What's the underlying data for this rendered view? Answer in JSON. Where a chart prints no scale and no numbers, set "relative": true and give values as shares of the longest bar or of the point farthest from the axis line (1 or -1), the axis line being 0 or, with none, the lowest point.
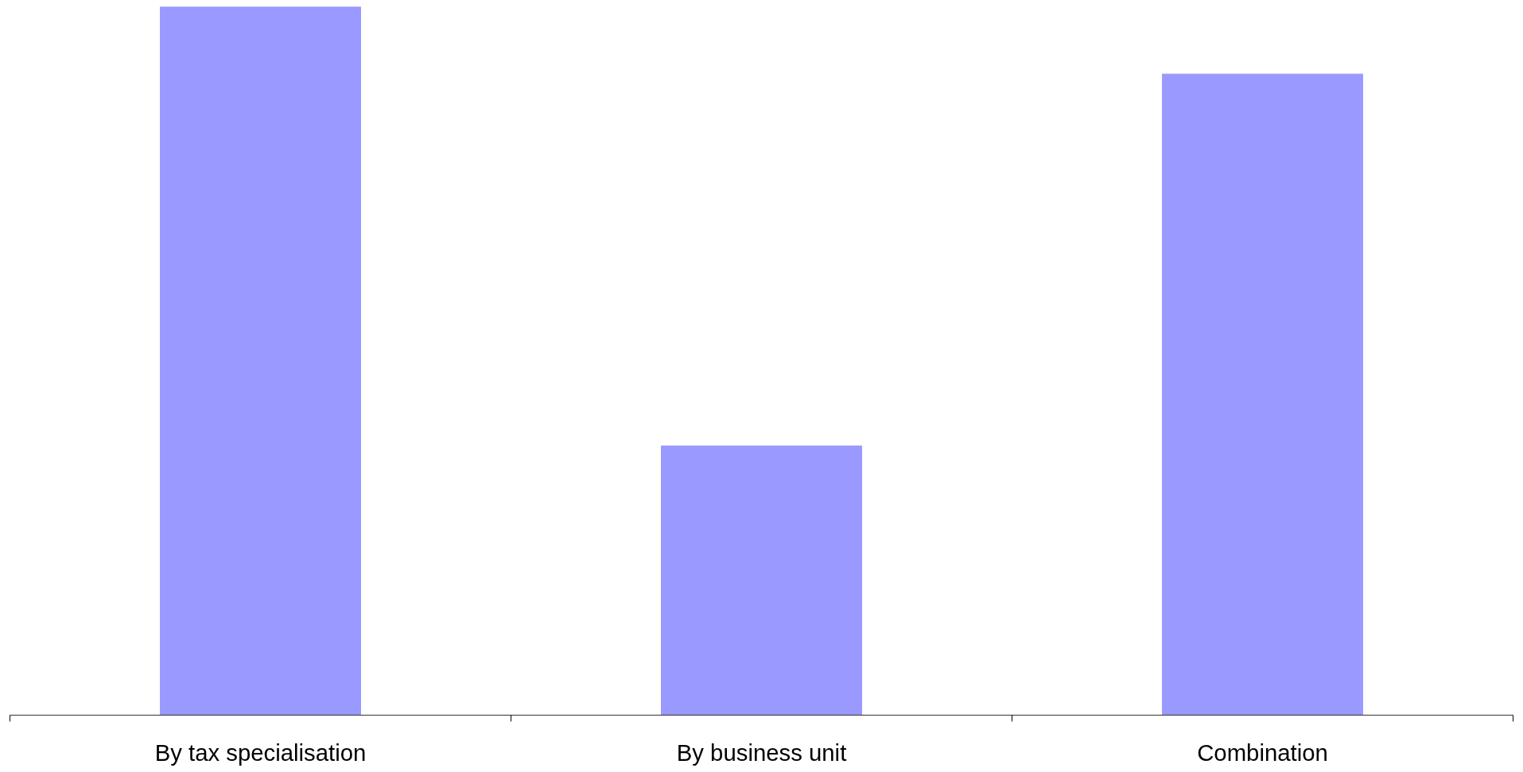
{
  "chart_data": {
    "type": "bar",
    "relative": true,
    "categories": [
      "By tax specialisation",
      "By business unit",
      "Combination"
    ],
    "values": [
      1,
      0.38,
      0.905
    ],
    "color": "#9999ff"
  }
}
